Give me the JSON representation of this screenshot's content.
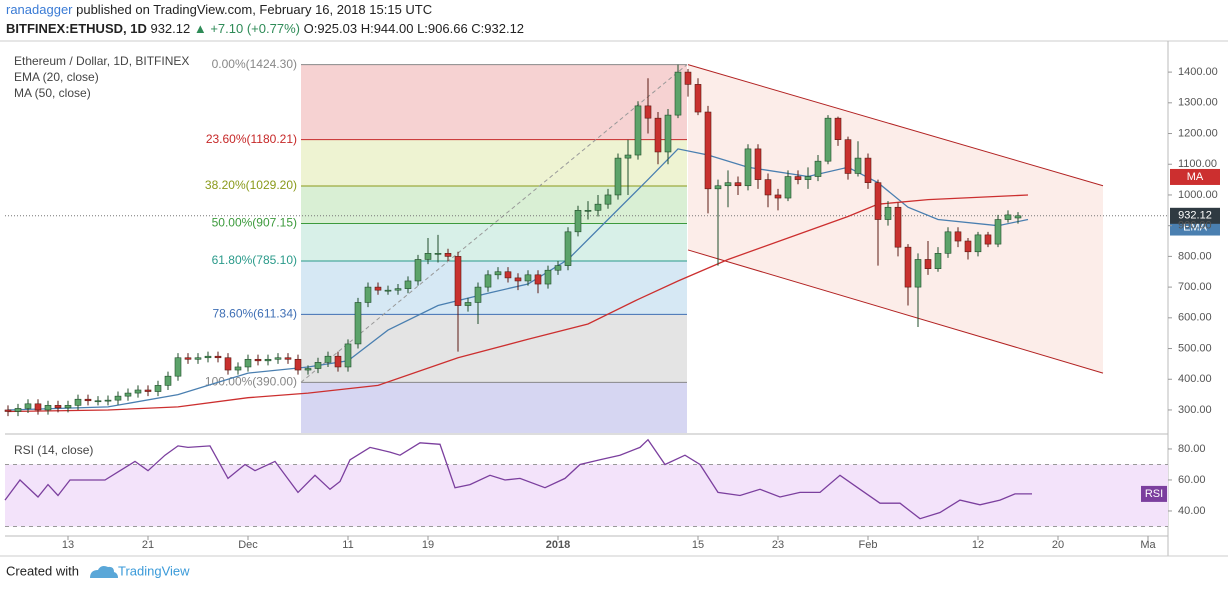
{
  "header": {
    "author": "ranadagger",
    "text": " published on TradingView.com, February 16, 2018 15:15 UTC",
    "symbol": "BITFINEX:ETHUSD, 1D",
    "price": "932.12",
    "change": "▲ +7.10 (+0.77%)",
    "ohlc": "O:925.03 H:944.00 L:906.66 C:932.12"
  },
  "chart_data": [
    {
      "type": "candlestick",
      "title": "Ethereum / Dollar, 1D, BITFINEX",
      "up_color": "#5ca36a",
      "down_color": "#c8312f",
      "open": [
        300,
        295,
        305,
        320,
        300,
        315,
        307,
        315,
        335,
        330,
        330,
        332,
        345,
        355,
        365,
        360,
        380,
        410,
        470,
        465,
        470,
        475,
        470,
        430,
        440,
        465,
        460,
        465,
        470,
        465,
        430,
        435,
        455,
        475,
        440,
        515,
        650,
        700,
        690,
        690,
        695,
        720,
        790,
        810,
        810,
        800,
        640,
        650,
        700,
        740,
        750,
        730,
        720,
        740,
        710,
        755,
        770,
        880,
        950,
        950,
        970,
        1000,
        1120,
        1130,
        1290,
        1250,
        1140,
        1260,
        1400,
        1360,
        1270,
        1020,
        1030,
        1040,
        1030,
        1150,
        1050,
        1000,
        990,
        1060,
        1050,
        1060,
        1110,
        1250,
        1180,
        1070,
        1120,
        1040,
        920,
        960,
        830,
        700,
        790,
        760,
        810,
        880,
        850,
        815,
        870,
        840,
        920,
        925.03
      ],
      "high": [
        315,
        320,
        335,
        335,
        330,
        330,
        330,
        350,
        350,
        345,
        347,
        360,
        370,
        380,
        380,
        395,
        425,
        485,
        485,
        485,
        490,
        490,
        485,
        455,
        480,
        480,
        480,
        485,
        485,
        480,
        445,
        470,
        490,
        490,
        530,
        665,
        715,
        715,
        705,
        710,
        735,
        805,
        860,
        870,
        825,
        815,
        665,
        715,
        755,
        765,
        765,
        745,
        755,
        755,
        770,
        785,
        895,
        965,
        980,
        1000,
        1020,
        1135,
        1180,
        1305,
        1380,
        1270,
        1280,
        1424.3,
        1410,
        1380,
        1290,
        1050,
        1080,
        1060,
        1165,
        1165,
        1070,
        1020,
        1080,
        1080,
        1090,
        1130,
        1260,
        1255,
        1190,
        1175,
        1135,
        1050,
        980,
        975,
        840,
        810,
        850,
        830,
        895,
        895,
        860,
        880,
        880,
        935,
        950,
        944
      ],
      "low": [
        280,
        280,
        290,
        285,
        285,
        292,
        292,
        300,
        315,
        315,
        315,
        317,
        330,
        340,
        345,
        345,
        365,
        395,
        450,
        450,
        455,
        455,
        415,
        415,
        425,
        445,
        445,
        450,
        450,
        415,
        415,
        420,
        440,
        425,
        425,
        500,
        635,
        675,
        675,
        675,
        680,
        705,
        775,
        780,
        785,
        490,
        620,
        580,
        685,
        725,
        715,
        690,
        705,
        680,
        695,
        740,
        755,
        865,
        920,
        930,
        955,
        985,
        1000,
        1115,
        1200,
        1100,
        1100,
        1250,
        1320,
        1260,
        940,
        770,
        960,
        1000,
        1015,
        1020,
        960,
        950,
        980,
        1035,
        1020,
        1045,
        1100,
        1160,
        1050,
        1060,
        1020,
        770,
        900,
        800,
        640,
        570,
        740,
        750,
        795,
        830,
        790,
        800,
        830,
        830,
        910,
        906.66
      ],
      "close": [
        295,
        305,
        320,
        300,
        315,
        307,
        315,
        335,
        330,
        330,
        332,
        345,
        355,
        365,
        360,
        380,
        410,
        470,
        465,
        470,
        475,
        470,
        430,
        440,
        465,
        460,
        465,
        470,
        465,
        430,
        435,
        455,
        475,
        440,
        515,
        650,
        700,
        690,
        690,
        695,
        720,
        790,
        810,
        810,
        800,
        640,
        650,
        700,
        740,
        750,
        730,
        720,
        740,
        710,
        755,
        770,
        880,
        950,
        950,
        970,
        1000,
        1120,
        1130,
        1290,
        1250,
        1140,
        1260,
        1400,
        1360,
        1270,
        1020,
        1030,
        1040,
        1030,
        1150,
        1050,
        1000,
        990,
        1060,
        1050,
        1060,
        1110,
        1250,
        1180,
        1070,
        1120,
        1040,
        920,
        960,
        830,
        700,
        790,
        760,
        810,
        880,
        850,
        815,
        870,
        840,
        920,
        935,
        932.12
      ],
      "series": [
        {
          "name": "EMA (20, close)",
          "tag": "EMA",
          "color": "#4a7fb0",
          "x": [
            0,
            10,
            17,
            24,
            30,
            34,
            38,
            43,
            48,
            52,
            56,
            60,
            64,
            67,
            70,
            74,
            80,
            84,
            87,
            90,
            93,
            99,
            102
          ],
          "values": [
            300,
            310,
            350,
            420,
            440,
            460,
            560,
            640,
            680,
            710,
            790,
            920,
            1050,
            1150,
            1130,
            1090,
            1060,
            1090,
            1040,
            960,
            920,
            900,
            920
          ]
        },
        {
          "name": "MA (50, close)",
          "tag": "MA",
          "color": "#cc2f2f",
          "x": [
            0,
            10,
            17,
            24,
            30,
            37,
            45,
            52,
            58,
            63,
            67,
            72,
            78,
            84,
            87,
            92,
            102
          ],
          "values": [
            295,
            300,
            310,
            340,
            355,
            380,
            470,
            530,
            580,
            660,
            720,
            790,
            860,
            930,
            970,
            985,
            1000
          ]
        }
      ],
      "fib_x": [
        29.3,
        67.9
      ],
      "fib_levels": [
        {
          "value": 1424.3,
          "label": "0.00%(1424.30)"
        },
        {
          "value": 1180.21,
          "label": "23.60%(1180.21)"
        },
        {
          "value": 1029.2,
          "label": "38.20%(1029.20)"
        },
        {
          "value": 907.15,
          "label": "50.00%(907.15)"
        },
        {
          "value": 785.1,
          "label": "61.80%(785.10)"
        },
        {
          "value": 611.34,
          "label": "78.60%(611.34)"
        },
        {
          "value": 390,
          "label": "100.00%(390.00)"
        }
      ],
      "fib_line_colors": [
        "#888888",
        "#c62828",
        "#8a9a1b",
        "#3c9a3c",
        "#2a9a8a",
        "#3f6fb5",
        "#888888"
      ],
      "fib_zone_colors": [
        "#f6d2d2",
        "#eef3d2",
        "#d9efd4",
        "#d8f0e8",
        "#d6e8f4",
        "#e4e4e4",
        "#d6d6f2"
      ],
      "channel": {
        "x": [
          68,
          109.5
        ],
        "upper": [
          1424.3,
          1030
        ],
        "lower": [
          821,
          420
        ],
        "color": "#b22222",
        "fill": "#fbe8e4"
      },
      "last_price": {
        "value": 932.12,
        "label": "932.12"
      },
      "xlim": [
        -0.3,
        116
      ],
      "ylim": [
        225,
        1498
      ],
      "yticks": [
        {
          "value": 300,
          "label": "300.00"
        },
        {
          "value": 400,
          "label": "400.00"
        },
        {
          "value": 500,
          "label": "500.00"
        },
        {
          "value": 600,
          "label": "600.00"
        },
        {
          "value": 700,
          "label": "700.00"
        },
        {
          "value": 800,
          "label": "800.00"
        },
        {
          "value": 900,
          "label": "900.00"
        },
        {
          "value": 1000,
          "label": "1000.00"
        },
        {
          "value": 1100,
          "label": "1100.00"
        },
        {
          "value": 1200,
          "label": "1200.00"
        },
        {
          "value": 1300,
          "label": "1300.00"
        },
        {
          "value": 1400,
          "label": "1400.00"
        }
      ]
    },
    {
      "type": "line",
      "title": "RSI (14, close)",
      "band": [
        30,
        70
      ],
      "band_color": "#f3e3fa",
      "series": [
        {
          "name": "RSI",
          "color": "#7b3f9e",
          "x": [
            -0.3,
            1.2,
            3,
            4,
            5,
            6.2,
            7.2,
            9.7,
            11.2,
            12.7,
            14,
            15.7,
            17,
            18,
            20.2,
            22,
            23.7,
            24.7,
            26.7,
            29,
            30.7,
            32.2,
            33.2,
            34.2,
            36.2,
            38.2,
            39.2,
            41.2,
            43.2,
            44.7,
            46.2,
            48.2,
            49.7,
            51.2,
            53.7,
            55.7,
            57.2,
            59.2,
            61.2,
            63.2,
            64,
            65.7,
            67.7,
            69.2,
            71,
            73.2,
            75.2,
            77.2,
            79.2,
            81.2,
            83.2,
            85.2,
            87.2,
            89.2,
            91.2,
            93.2,
            95.2,
            97.2,
            99.2,
            100.7,
            102.4
          ],
          "values": [
            47,
            60,
            49,
            57,
            50,
            60,
            60,
            60,
            66,
            72,
            66,
            76,
            82,
            81,
            82,
            61,
            70,
            66,
            72,
            52,
            63,
            54,
            59,
            73,
            81,
            78,
            76,
            84,
            83,
            55,
            57,
            63,
            60,
            61,
            55,
            61,
            70,
            73,
            76,
            81,
            86,
            70,
            76,
            70,
            52,
            50,
            54,
            49,
            52,
            52,
            63,
            54,
            45,
            45,
            35,
            39,
            47,
            44,
            47,
            51,
            51
          ]
        }
      ],
      "xlim": [
        -0.3,
        116
      ],
      "ylim": [
        24.5,
        89
      ],
      "yticks": [
        {
          "value": 40,
          "label": "40.00"
        },
        {
          "value": 60,
          "label": "60.00"
        },
        {
          "value": 80,
          "label": "80.00"
        }
      ],
      "xticks": [
        {
          "value": 6,
          "label": "13"
        },
        {
          "value": 14,
          "label": "21"
        },
        {
          "value": 24,
          "label": "Dec"
        },
        {
          "value": 34,
          "label": "11"
        },
        {
          "value": 42,
          "label": "19"
        },
        {
          "value": 55,
          "label": "2018"
        },
        {
          "value": 69,
          "label": "15"
        },
        {
          "value": 77,
          "label": "23"
        },
        {
          "value": 86,
          "label": "Feb"
        },
        {
          "value": 97,
          "label": "12"
        },
        {
          "value": 105,
          "label": "20"
        },
        {
          "value": 114,
          "label": "Ma"
        }
      ]
    }
  ],
  "footer": {
    "created": "Created with",
    "brand": "TradingView"
  }
}
